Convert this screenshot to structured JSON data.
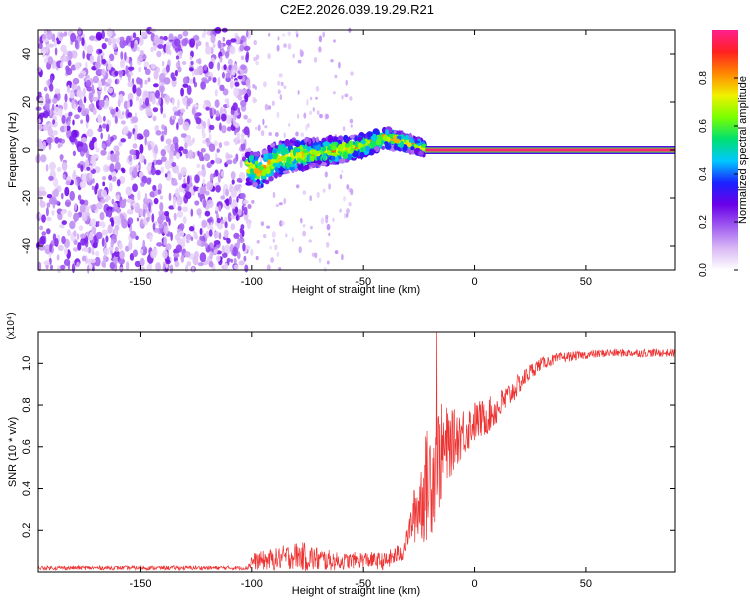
{
  "title": "C2E2.2026.039.19.29.R21",
  "chart_data": [
    {
      "type": "heatmap",
      "xlabel": "Height of straight line (km)",
      "ylabel": "Frequency (Hz)",
      "xlim": [
        -196,
        90
      ],
      "ylim": [
        -50,
        50
      ],
      "xticks": [
        -150,
        -100,
        -50,
        0,
        50
      ],
      "yticks": [
        -40,
        -20,
        0,
        20,
        40
      ],
      "xtick_labels": [
        "-150",
        "-100",
        "-50",
        "0",
        "50"
      ],
      "ytick_labels": [
        "-40",
        "-20",
        "0",
        "20",
        "40"
      ],
      "colorbar": {
        "label": "Normalized spectral amplitude",
        "range": [
          0,
          1
        ],
        "ticks": [
          0.0,
          0.2,
          0.4,
          0.6,
          0.8
        ],
        "tick_labels": [
          "0.0",
          "0.2",
          "0.4",
          "0.6",
          "0.8"
        ],
        "colors": [
          "#ffffff",
          "#d9b8f5",
          "#a05cf0",
          "#6a00e8",
          "#1a22ff",
          "#00c8ff",
          "#00e070",
          "#7aff00",
          "#f0f000",
          "#ff8800",
          "#ff2020",
          "#ff2090"
        ]
      },
      "ridge": {
        "x": [
          -102,
          -96,
          -90,
          -80,
          -70,
          -60,
          -50,
          -40,
          -30,
          -20,
          -10,
          0,
          20,
          40,
          60,
          88
        ],
        "y": [
          -7,
          -9,
          -4,
          -2,
          -1,
          0,
          2,
          5,
          3,
          0,
          0,
          0,
          0,
          0,
          0,
          0
        ]
      },
      "noise_region": [
        -196,
        -101
      ]
    },
    {
      "type": "line",
      "xlabel": "Height of straight line (km)",
      "ylabel": "SNR (10 * v/v)",
      "y_multiplier": "(x10⁴)",
      "xlim": [
        -196,
        90
      ],
      "ylim": [
        0,
        1.15
      ],
      "xticks": [
        -150,
        -100,
        -50,
        0,
        50
      ],
      "yticks": [
        0.2,
        0.4,
        0.6,
        0.8,
        1.0
      ],
      "xtick_labels": [
        "-150",
        "-100",
        "-50",
        "0",
        "50"
      ],
      "ytick_labels": [
        "0.2",
        "0.4",
        "0.6",
        "0.8",
        "1.0"
      ],
      "color": "#ee3333",
      "trend": {
        "x": [
          -196,
          -102,
          -100,
          -90,
          -80,
          -70,
          -60,
          -50,
          -40,
          -32,
          -28,
          -24,
          -20,
          -16,
          -12,
          -8,
          -4,
          0,
          5,
          10,
          15,
          20,
          25,
          30,
          40,
          50,
          60,
          70,
          80,
          90
        ],
        "y": [
          0.02,
          0.02,
          0.05,
          0.06,
          0.08,
          0.06,
          0.05,
          0.06,
          0.05,
          0.1,
          0.25,
          0.35,
          0.45,
          0.55,
          0.6,
          0.65,
          0.68,
          0.72,
          0.74,
          0.78,
          0.84,
          0.9,
          0.96,
          1.0,
          1.03,
          1.04,
          1.05,
          1.05,
          1.05,
          1.05
        ]
      },
      "spread": {
        "x": [
          -196,
          -102,
          -100,
          -85,
          -75,
          -60,
          -45,
          -30,
          -25,
          -20,
          -15,
          -10,
          0,
          10,
          20,
          30,
          50,
          90
        ],
        "y": [
          0.01,
          0.01,
          0.04,
          0.06,
          0.07,
          0.04,
          0.04,
          0.05,
          0.2,
          0.3,
          0.25,
          0.15,
          0.1,
          0.08,
          0.05,
          0.03,
          0.02,
          0.02
        ]
      },
      "peak": {
        "x": -17,
        "y": 1.15
      }
    }
  ]
}
